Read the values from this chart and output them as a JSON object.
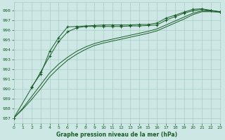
{
  "title": "Graphe pression niveau de la mer (hPa)",
  "bg_color": "#cde8e4",
  "grid_color": "#aaccc6",
  "line_color": "#1a5c28",
  "xlim": [
    0,
    23
  ],
  "ylim": [
    986.5,
    998.8
  ],
  "yticks": [
    987,
    988,
    989,
    990,
    991,
    992,
    993,
    994,
    995,
    996,
    997,
    998
  ],
  "xticks": [
    0,
    1,
    2,
    3,
    4,
    5,
    6,
    7,
    8,
    9,
    10,
    11,
    12,
    13,
    14,
    15,
    16,
    17,
    18,
    19,
    20,
    21,
    22,
    23
  ],
  "series_marked1": {
    "x": [
      0,
      2,
      3,
      4,
      5,
      6,
      7,
      8,
      9,
      10,
      11,
      12,
      13,
      14,
      15,
      16,
      17,
      18,
      19,
      20,
      21,
      22,
      23
    ],
    "y": [
      987.0,
      990.1,
      991.7,
      993.3,
      994.8,
      995.8,
      996.2,
      996.35,
      996.35,
      996.35,
      996.35,
      996.35,
      996.4,
      996.4,
      996.45,
      996.5,
      997.0,
      997.35,
      997.7,
      997.95,
      998.1,
      997.95,
      997.85
    ]
  },
  "series_marked2": {
    "x": [
      2,
      3,
      4,
      5,
      6,
      7,
      8,
      9,
      10,
      11,
      12,
      13,
      14,
      15,
      16,
      17,
      18,
      19,
      20,
      21,
      22,
      23
    ],
    "y": [
      990.2,
      991.5,
      993.8,
      995.2,
      996.3,
      996.35,
      996.4,
      996.45,
      996.5,
      996.5,
      996.5,
      996.5,
      996.55,
      996.55,
      996.7,
      997.2,
      997.5,
      997.8,
      998.1,
      998.15,
      998.0,
      997.85
    ]
  },
  "series_smooth1": {
    "x": [
      0,
      1,
      2,
      3,
      4,
      5,
      6,
      7,
      8,
      9,
      10,
      11,
      12,
      13,
      14,
      15,
      16,
      17,
      18,
      19,
      20,
      21,
      22,
      23
    ],
    "y": [
      987.0,
      987.9,
      988.9,
      990.0,
      991.2,
      992.1,
      992.9,
      993.5,
      994.0,
      994.4,
      994.65,
      994.85,
      995.05,
      995.25,
      995.45,
      995.65,
      995.9,
      996.3,
      996.7,
      997.1,
      997.55,
      997.85,
      997.85,
      997.8
    ]
  },
  "series_smooth2": {
    "x": [
      0,
      1,
      2,
      3,
      4,
      5,
      6,
      7,
      8,
      9,
      10,
      11,
      12,
      13,
      14,
      15,
      16,
      17,
      18,
      19,
      20,
      21,
      22,
      23
    ],
    "y": [
      987.0,
      988.0,
      989.2,
      990.4,
      991.6,
      992.5,
      993.2,
      993.8,
      994.25,
      994.6,
      994.85,
      995.05,
      995.25,
      995.45,
      995.65,
      995.85,
      996.1,
      996.5,
      996.9,
      997.3,
      997.7,
      997.95,
      997.95,
      997.85
    ]
  }
}
